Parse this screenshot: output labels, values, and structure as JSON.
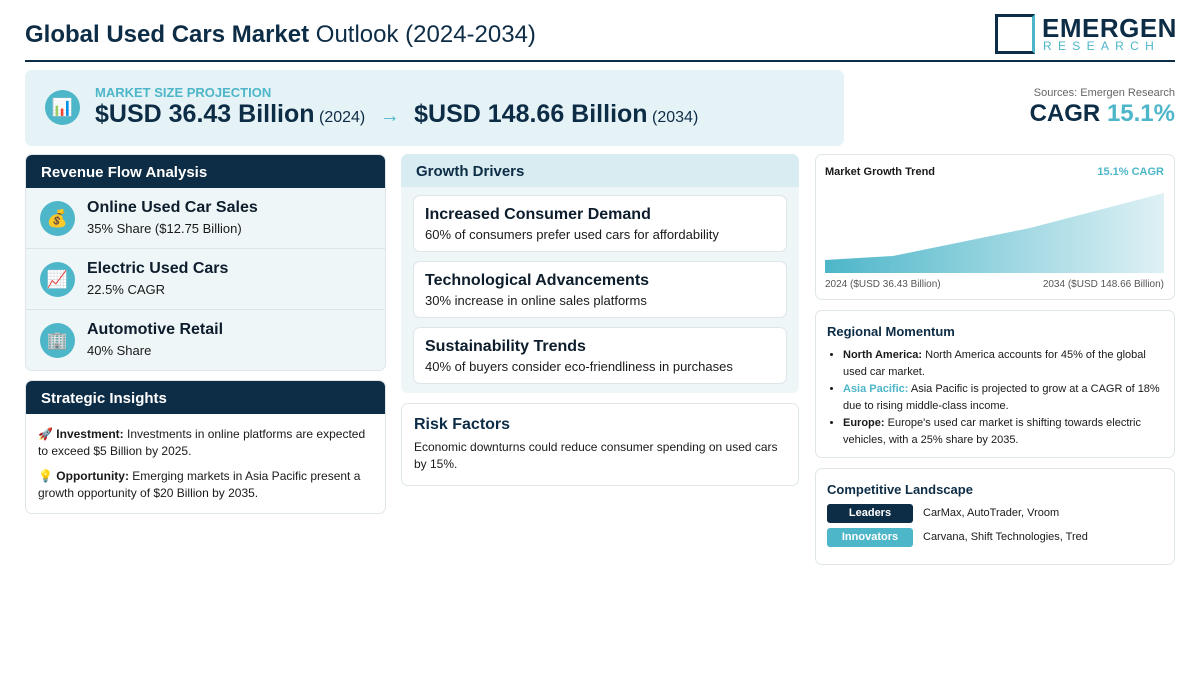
{
  "header": {
    "title_bold": "Global Used Cars Market",
    "title_rest": "Outlook (2024-2034)",
    "logo": {
      "name": "EMERGEN",
      "sub": "RESEARCH"
    }
  },
  "projection": {
    "icon": "📊",
    "label": "MARKET SIZE PROJECTION",
    "start_value": "$USD 36.43 Billion",
    "start_year": "(2024)",
    "arrow": "→",
    "end_value": "$USD 148.66 Billion",
    "end_year": "(2034)"
  },
  "summary": {
    "source": "Sources: Emergen Research",
    "cagr_label": "CAGR",
    "cagr_value": "15.1%"
  },
  "revenue_flow": {
    "title": "Revenue Flow Analysis",
    "items": [
      {
        "icon": "💰",
        "title": "Online Used Car Sales",
        "detail": "35% Share ($12.75 Billion)"
      },
      {
        "icon": "📈",
        "title": "Electric Used Cars",
        "detail": "22.5% CAGR"
      },
      {
        "icon": "🏢",
        "title": "Automotive Retail",
        "detail": "40% Share"
      }
    ]
  },
  "strategic_insights": {
    "title": "Strategic Insights",
    "items": [
      {
        "icon": "🚀",
        "label": "Investment:",
        "text": "Investments in online platforms are expected to exceed $5 Billion by 2025."
      },
      {
        "icon": "💡",
        "label": "Opportunity:",
        "text": "Emerging markets in Asia Pacific present a growth opportunity of $20 Billion by 2035."
      }
    ]
  },
  "growth_drivers": {
    "title": "Growth Drivers",
    "items": [
      {
        "title": "Increased Consumer Demand",
        "text": "60% of consumers prefer used cars for affordability"
      },
      {
        "title": "Technological Advancements",
        "text": "30% increase in online sales platforms"
      },
      {
        "title": "Sustainability Trends",
        "text": "40% of buyers consider eco-friendliness in purchases"
      }
    ]
  },
  "risk_factors": {
    "title": "Risk Factors",
    "text": "Economic downturns could reduce consumer spending on used cars by 15%."
  },
  "trend": {
    "title": "Market Growth Trend",
    "badge": "15.1% CAGR",
    "start_label": "2024 ($USD 36.43 Billion)",
    "end_label": "2034 ($USD 148.66 Billion)"
  },
  "regional": {
    "title": "Regional Momentum",
    "items": [
      {
        "region": "North America:",
        "text": "North America accounts for 45% of the global used car market."
      },
      {
        "region": "Asia Pacific:",
        "text": "Asia Pacific is projected to grow at a CAGR of 18% due to rising middle-class income."
      },
      {
        "region": "Europe:",
        "text": "Europe's used car market is shifting towards electric vehicles, with a 25% share by 2035."
      }
    ]
  },
  "competitive": {
    "title": "Competitive Landscape",
    "rows": [
      {
        "tag": "Leaders",
        "names": "CarMax, AutoTrader, Vroom"
      },
      {
        "tag": "Innovators",
        "names": "Carvana, Shift Technologies, Tred"
      }
    ]
  }
}
